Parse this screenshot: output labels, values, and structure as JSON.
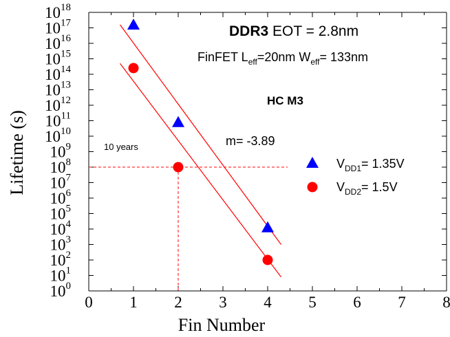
{
  "chart_data": {
    "type": "scatter",
    "xlabel": "Fin Number",
    "ylabel": "Lifetime (s)",
    "xlim": [
      0,
      8
    ],
    "ylim_log10": [
      0,
      18
    ],
    "x_ticks": [
      "0",
      "1",
      "2",
      "3",
      "4",
      "5",
      "6",
      "7",
      "8"
    ],
    "y_tick_base": "10",
    "y_tick_exponents": [
      "0",
      "1",
      "2",
      "3",
      "4",
      "5",
      "6",
      "7",
      "8",
      "9",
      "10",
      "11",
      "12",
      "13",
      "14",
      "15",
      "16",
      "17",
      "18"
    ],
    "y_scale": "log",
    "grid": false,
    "legend_position": "right",
    "series": [
      {
        "key": "vdd1",
        "legend_prefix": "V",
        "legend_subscript": "DD1",
        "legend_suffix": "= 1.35V",
        "marker": "triangle",
        "color": "#0000ff",
        "points": [
          {
            "x": 1,
            "log10_y": 17.2
          },
          {
            "x": 2,
            "log10_y": 10.9
          },
          {
            "x": 4,
            "log10_y": 4.1
          }
        ]
      },
      {
        "key": "vdd2",
        "legend_prefix": "V",
        "legend_subscript": "DD2",
        "legend_suffix": "= 1.5V",
        "marker": "circle",
        "color": "#ff0000",
        "points": [
          {
            "x": 1,
            "log10_y": 14.4
          },
          {
            "x": 2,
            "log10_y": 8.0
          },
          {
            "x": 4,
            "log10_y": 2.0
          }
        ]
      }
    ],
    "fit_lines": [
      {
        "x": [
          0.7,
          4.3
        ],
        "log10_y": [
          17.2,
          3.0
        ],
        "color": "#ff0000"
      },
      {
        "x": [
          0.7,
          4.3
        ],
        "log10_y": [
          14.7,
          0.9
        ],
        "color": "#ff0000"
      }
    ],
    "reference": {
      "label": "10 years",
      "log10_y": 8.0,
      "x_intercept": 2,
      "color": "#ff0000"
    },
    "annotations": {
      "ddr_bold": "DDR3",
      "ddr_rest": " EOT = 2.8nm",
      "finfet_a": "FinFET L",
      "finfet_sub1": "eff",
      "finfet_b": "=20nm W",
      "finfet_sub2": "eff",
      "finfet_c": "= 133nm",
      "hc": "HC M3",
      "slope": "m= -3.89"
    }
  }
}
